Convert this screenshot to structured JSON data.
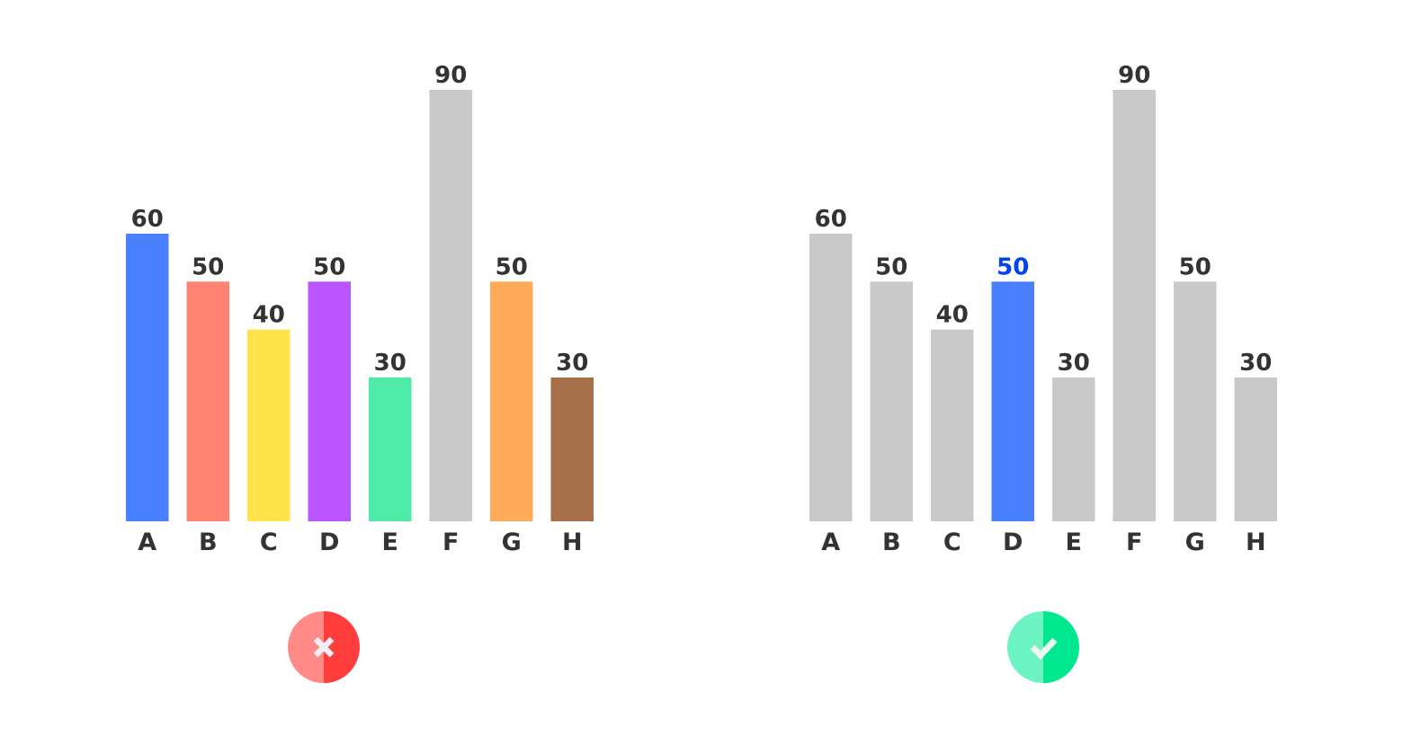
{
  "chart_data": [
    {
      "type": "bar",
      "categories": [
        "A",
        "B",
        "C",
        "D",
        "E",
        "F",
        "G",
        "H"
      ],
      "values": [
        60,
        50,
        40,
        50,
        30,
        90,
        50,
        30
      ],
      "ylim": [
        0,
        90
      ],
      "grid": false,
      "bar_colors": [
        "#4a7fff",
        "#ff8370",
        "#ffe34a",
        "#bb55ff",
        "#4deaa8",
        "#c9c9c9",
        "#ffab57",
        "#a6714a"
      ],
      "label_colors": [
        "#333333",
        "#333333",
        "#333333",
        "#333333",
        "#333333",
        "#333333",
        "#333333",
        "#333333"
      ],
      "verdict": "wrong",
      "verdict_icon": "close-icon",
      "verdict_colors": [
        "#ff8a87",
        "#ff3d3d"
      ]
    },
    {
      "type": "bar",
      "categories": [
        "A",
        "B",
        "C",
        "D",
        "E",
        "F",
        "G",
        "H"
      ],
      "values": [
        60,
        50,
        40,
        50,
        30,
        90,
        50,
        30
      ],
      "ylim": [
        0,
        90
      ],
      "grid": false,
      "bar_colors": [
        "#c9c9c9",
        "#c9c9c9",
        "#c9c9c9",
        "#4a7fff",
        "#c9c9c9",
        "#c9c9c9",
        "#c9c9c9",
        "#c9c9c9"
      ],
      "label_colors": [
        "#333333",
        "#333333",
        "#333333",
        "#0044ee",
        "#333333",
        "#333333",
        "#333333",
        "#333333"
      ],
      "highlight": "D",
      "verdict": "right",
      "verdict_icon": "check-icon",
      "verdict_colors": [
        "#6cf5c2",
        "#00e88f"
      ]
    }
  ]
}
